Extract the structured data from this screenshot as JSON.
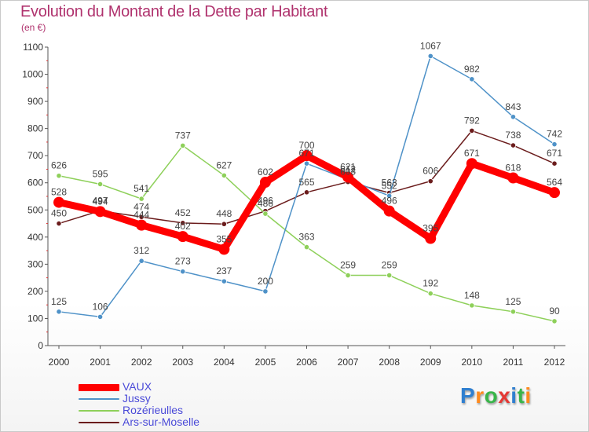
{
  "chart_data": {
    "type": "line",
    "title": "Evolution du Montant de la Dette par Habitant",
    "subtitle": "(en €)",
    "x": [
      "2000",
      "2001",
      "2002",
      "2003",
      "2004",
      "2005",
      "2006",
      "2007",
      "2008",
      "2009",
      "2010",
      "2011",
      "2012"
    ],
    "ylim": [
      0,
      1100
    ],
    "yticks": [
      0,
      100,
      200,
      300,
      400,
      500,
      600,
      700,
      800,
      900,
      1000,
      1100
    ],
    "grid": false,
    "legend_position": "bottom-left",
    "series": [
      {
        "name": "VAUX",
        "color": "#ff0000",
        "values": [
          528,
          494,
          444,
          402,
          355,
          602,
          700,
          621,
          496,
          395,
          671,
          618,
          564
        ]
      },
      {
        "name": "Jussy",
        "color": "#4f92c8",
        "values": [
          125,
          106,
          312,
          273,
          237,
          200,
          671,
          612,
          552,
          1067,
          982,
          843,
          742
        ]
      },
      {
        "name": "Rozérieulles",
        "color": "#8ed05a",
        "values": [
          626,
          595,
          541,
          737,
          627,
          486,
          363,
          259,
          259,
          192,
          148,
          125,
          90
        ]
      },
      {
        "name": "Ars-sur-Moselle",
        "color": "#6b1c1c",
        "values": [
          450,
          497,
          474,
          452,
          448,
          496,
          565,
          603,
          563,
          606,
          792,
          738,
          671
        ]
      }
    ]
  },
  "logo": {
    "text": "Proxiti"
  }
}
